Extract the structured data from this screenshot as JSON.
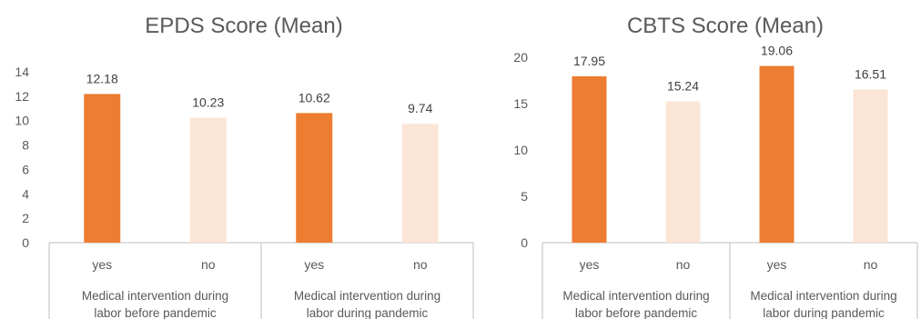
{
  "colors": {
    "yes": "#ed7d31",
    "no": "#fbe5d6",
    "axis": "#bfbfbf",
    "text": "#595959"
  },
  "chart_data": [
    {
      "type": "bar",
      "title": "EPDS Score (Mean)",
      "xlabel": "",
      "ylabel": "",
      "ylim": [
        0,
        14
      ],
      "yticks": [
        "0",
        "2",
        "4",
        "6",
        "8",
        "10",
        "12",
        "14"
      ],
      "grid": false,
      "legend": "none",
      "categories": [
        "yes",
        "no",
        "yes",
        "no"
      ],
      "groups": [
        {
          "label_lines": [
            "Medical intervention during",
            "labor before pandemic"
          ]
        },
        {
          "label_lines": [
            "Medical intervention during",
            "labor during pandemic"
          ]
        }
      ],
      "values": [
        12.18,
        10.23,
        10.62,
        9.74
      ],
      "data_labels": [
        "12.18",
        "10.23",
        "10.62",
        "9.74"
      ]
    },
    {
      "type": "bar",
      "title": "CBTS Score (Mean)",
      "xlabel": "",
      "ylabel": "",
      "ylim": [
        0,
        20
      ],
      "yticks": [
        "0",
        "5",
        "10",
        "15",
        "20"
      ],
      "grid": false,
      "legend": "none",
      "categories": [
        "yes",
        "no",
        "yes",
        "no"
      ],
      "groups": [
        {
          "label_lines": [
            "Medical intervention during",
            "labor before pandemic"
          ]
        },
        {
          "label_lines": [
            "Medical intervention during",
            "labor during pandemic"
          ]
        }
      ],
      "values": [
        17.95,
        15.24,
        19.06,
        16.51
      ],
      "data_labels": [
        "17.95",
        "15.24",
        "19.06",
        "16.51"
      ]
    }
  ]
}
